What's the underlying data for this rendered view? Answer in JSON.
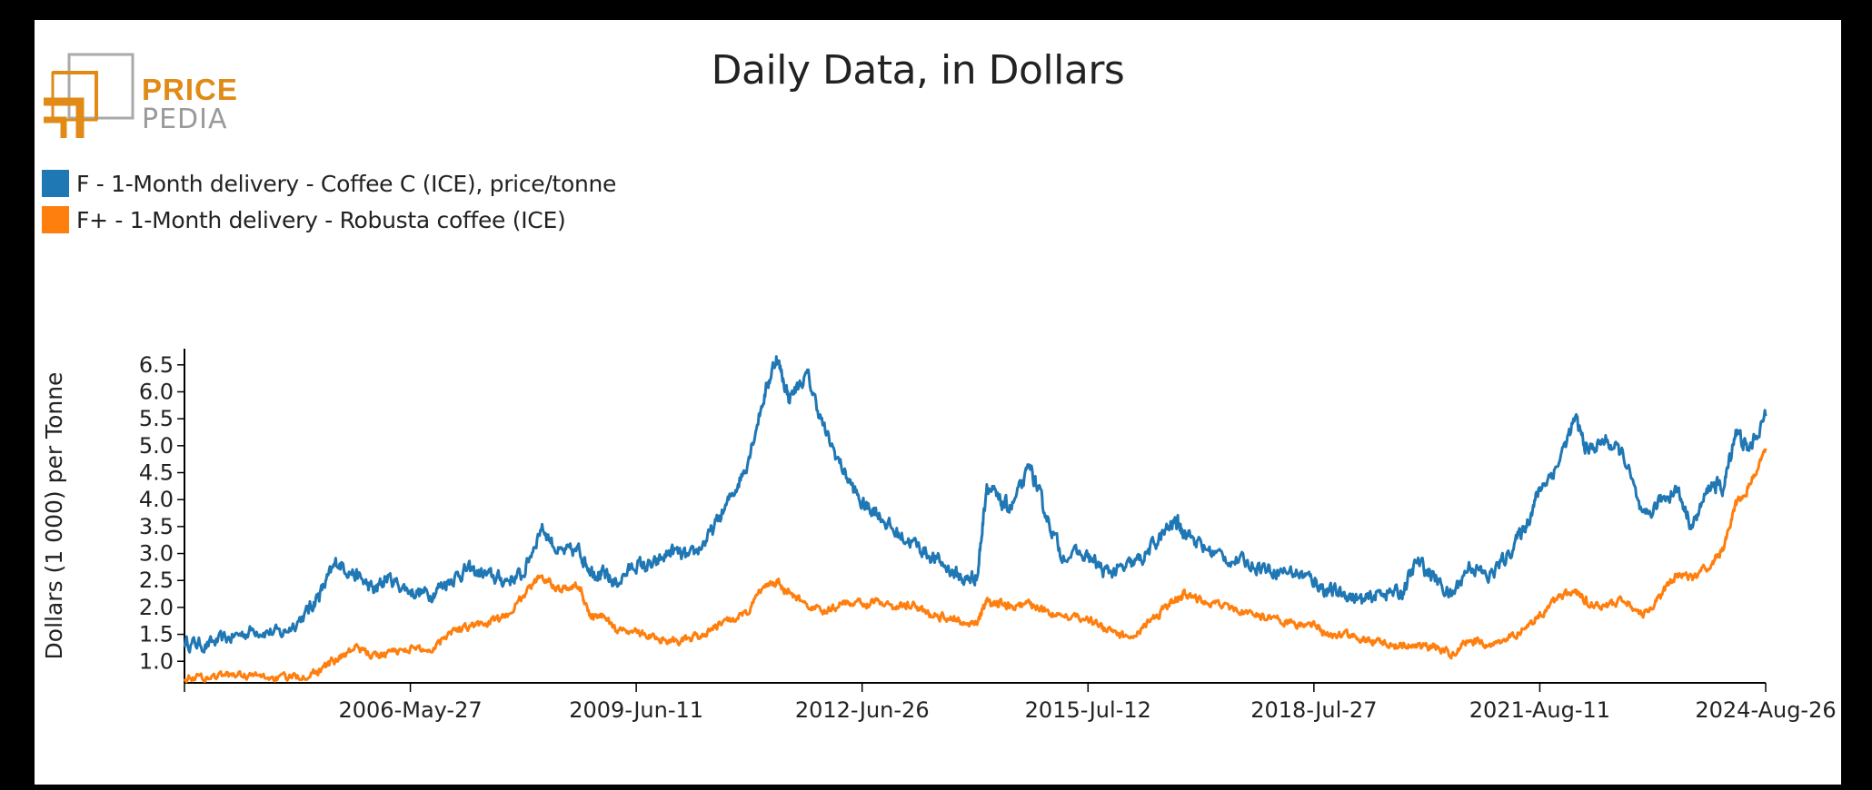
{
  "brand": {
    "word1": "PRICE",
    "word2": "PEDIA"
  },
  "chart_data": {
    "type": "line",
    "title": "Daily Data, in Dollars",
    "ylabel": "Dollars (1 000) per Tonne",
    "xlabel": "",
    "ylim": [
      0.6,
      6.8
    ],
    "xlim": [
      "2003-05-12",
      "2024-08-26"
    ],
    "yticks": [
      1.0,
      1.5,
      2.0,
      2.5,
      3.0,
      3.5,
      4.0,
      4.5,
      5.0,
      5.5,
      6.0,
      6.5
    ],
    "xticks": [
      "2006-May-27",
      "2009-Jun-11",
      "2012-Jun-26",
      "2015-Jul-12",
      "2018-Jul-27",
      "2021-Aug-11",
      "2024-Aug-26"
    ],
    "grid": false,
    "legend_position": "top-left",
    "series": [
      {
        "name": "F - 1-Month delivery - Coffee C (ICE), price/tonne",
        "color": "#1f77b4",
        "points": [
          [
            "2003-05-12",
            1.35
          ],
          [
            "2003-09-01",
            1.3
          ],
          [
            "2004-01-01",
            1.45
          ],
          [
            "2004-05-01",
            1.6
          ],
          [
            "2004-09-01",
            1.5
          ],
          [
            "2005-01-01",
            1.9
          ],
          [
            "2005-03-15",
            2.3
          ],
          [
            "2005-06-01",
            2.85
          ],
          [
            "2005-09-01",
            2.6
          ],
          [
            "2005-12-01",
            2.3
          ],
          [
            "2006-02-01",
            2.55
          ],
          [
            "2006-05-27",
            2.3
          ],
          [
            "2006-09-01",
            2.25
          ],
          [
            "2006-12-01",
            2.5
          ],
          [
            "2007-03-01",
            2.7
          ],
          [
            "2007-06-01",
            2.6
          ],
          [
            "2007-09-01",
            2.5
          ],
          [
            "2007-12-01",
            2.6
          ],
          [
            "2008-03-01",
            3.5
          ],
          [
            "2008-06-01",
            3.0
          ],
          [
            "2008-09-01",
            3.05
          ],
          [
            "2008-11-01",
            2.7
          ],
          [
            "2009-01-01",
            2.6
          ],
          [
            "2009-03-01",
            2.45
          ],
          [
            "2009-06-11",
            2.8
          ],
          [
            "2009-09-01",
            2.75
          ],
          [
            "2009-12-01",
            3.05
          ],
          [
            "2010-03-01",
            2.9
          ],
          [
            "2010-06-01",
            3.3
          ],
          [
            "2010-09-01",
            3.9
          ],
          [
            "2010-12-01",
            4.6
          ],
          [
            "2011-03-01",
            5.9
          ],
          [
            "2011-05-01",
            6.65
          ],
          [
            "2011-07-01",
            5.9
          ],
          [
            "2011-10-01",
            6.3
          ],
          [
            "2012-01-01",
            5.2
          ],
          [
            "2012-04-01",
            4.5
          ],
          [
            "2012-06-26",
            3.9
          ],
          [
            "2012-09-01",
            3.8
          ],
          [
            "2012-12-01",
            3.4
          ],
          [
            "2013-03-01",
            3.2
          ],
          [
            "2013-06-01",
            2.95
          ],
          [
            "2013-09-01",
            2.7
          ],
          [
            "2013-11-15",
            2.5
          ],
          [
            "2014-01-15",
            2.6
          ],
          [
            "2014-03-01",
            4.3
          ],
          [
            "2014-05-01",
            3.95
          ],
          [
            "2014-07-01",
            3.85
          ],
          [
            "2014-10-01",
            4.6
          ],
          [
            "2014-12-01",
            3.9
          ],
          [
            "2015-03-01",
            3.0
          ],
          [
            "2015-07-12",
            2.95
          ],
          [
            "2015-10-01",
            2.65
          ],
          [
            "2016-01-01",
            2.7
          ],
          [
            "2016-04-01",
            2.9
          ],
          [
            "2016-07-01",
            3.3
          ],
          [
            "2016-09-15",
            3.6
          ],
          [
            "2016-11-01",
            3.4
          ],
          [
            "2017-02-01",
            3.1
          ],
          [
            "2017-06-01",
            2.9
          ],
          [
            "2017-10-01",
            2.8
          ],
          [
            "2018-01-01",
            2.7
          ],
          [
            "2018-05-01",
            2.65
          ],
          [
            "2018-07-27",
            2.5
          ],
          [
            "2018-10-01",
            2.3
          ],
          [
            "2019-01-01",
            2.25
          ],
          [
            "2019-04-01",
            2.1
          ],
          [
            "2019-07-01",
            2.3
          ],
          [
            "2019-10-01",
            2.25
          ],
          [
            "2019-12-15",
            2.85
          ],
          [
            "2020-03-01",
            2.6
          ],
          [
            "2020-06-01",
            2.2
          ],
          [
            "2020-09-01",
            2.8
          ],
          [
            "2020-12-01",
            2.55
          ],
          [
            "2021-03-01",
            2.95
          ],
          [
            "2021-06-01",
            3.5
          ],
          [
            "2021-08-11",
            4.2
          ],
          [
            "2021-11-01",
            4.6
          ],
          [
            "2022-02-01",
            5.5
          ],
          [
            "2022-04-01",
            4.9
          ],
          [
            "2022-07-01",
            5.1
          ],
          [
            "2022-10-01",
            4.8
          ],
          [
            "2023-01-01",
            3.6
          ],
          [
            "2023-04-01",
            4.0
          ],
          [
            "2023-06-15",
            4.2
          ],
          [
            "2023-09-01",
            3.5
          ],
          [
            "2023-12-01",
            4.3
          ],
          [
            "2024-02-01",
            4.2
          ],
          [
            "2024-04-01",
            5.3
          ],
          [
            "2024-06-01",
            4.9
          ],
          [
            "2024-08-26",
            5.55
          ]
        ]
      },
      {
        "name": "F+ - 1-Month delivery - Robusta coffee (ICE)",
        "color": "#ff7f0e",
        "points": [
          [
            "2003-05-12",
            0.72
          ],
          [
            "2003-09-01",
            0.7
          ],
          [
            "2004-01-01",
            0.76
          ],
          [
            "2004-05-01",
            0.72
          ],
          [
            "2004-09-01",
            0.68
          ],
          [
            "2005-01-01",
            0.75
          ],
          [
            "2005-03-15",
            0.85
          ],
          [
            "2005-06-01",
            1.05
          ],
          [
            "2005-09-01",
            1.25
          ],
          [
            "2005-12-01",
            1.1
          ],
          [
            "2006-02-01",
            1.15
          ],
          [
            "2006-05-27",
            1.25
          ],
          [
            "2006-09-01",
            1.2
          ],
          [
            "2006-12-01",
            1.55
          ],
          [
            "2007-03-01",
            1.65
          ],
          [
            "2007-06-01",
            1.7
          ],
          [
            "2007-09-01",
            1.8
          ],
          [
            "2007-12-01",
            2.2
          ],
          [
            "2008-03-01",
            2.6
          ],
          [
            "2008-06-01",
            2.35
          ],
          [
            "2008-09-01",
            2.4
          ],
          [
            "2008-11-01",
            1.8
          ],
          [
            "2009-01-01",
            1.85
          ],
          [
            "2009-03-01",
            1.6
          ],
          [
            "2009-06-11",
            1.55
          ],
          [
            "2009-09-01",
            1.45
          ],
          [
            "2009-12-01",
            1.4
          ],
          [
            "2010-03-01",
            1.38
          ],
          [
            "2010-06-01",
            1.55
          ],
          [
            "2010-09-01",
            1.75
          ],
          [
            "2010-12-01",
            1.85
          ],
          [
            "2011-03-01",
            2.4
          ],
          [
            "2011-05-01",
            2.5
          ],
          [
            "2011-07-01",
            2.25
          ],
          [
            "2011-10-01",
            2.05
          ],
          [
            "2012-01-01",
            1.9
          ],
          [
            "2012-04-01",
            2.1
          ],
          [
            "2012-06-26",
            2.05
          ],
          [
            "2012-09-01",
            2.15
          ],
          [
            "2012-12-01",
            2.0
          ],
          [
            "2013-03-01",
            2.05
          ],
          [
            "2013-06-01",
            1.85
          ],
          [
            "2013-09-01",
            1.8
          ],
          [
            "2013-11-15",
            1.7
          ],
          [
            "2014-01-15",
            1.75
          ],
          [
            "2014-03-01",
            2.1
          ],
          [
            "2014-05-01",
            2.05
          ],
          [
            "2014-07-01",
            2.0
          ],
          [
            "2014-10-01",
            2.05
          ],
          [
            "2014-12-01",
            1.95
          ],
          [
            "2015-03-01",
            1.85
          ],
          [
            "2015-07-12",
            1.8
          ],
          [
            "2015-10-01",
            1.6
          ],
          [
            "2016-01-01",
            1.45
          ],
          [
            "2016-04-01",
            1.6
          ],
          [
            "2016-07-01",
            1.9
          ],
          [
            "2016-09-15",
            2.15
          ],
          [
            "2016-11-01",
            2.25
          ],
          [
            "2017-02-01",
            2.1
          ],
          [
            "2017-06-01",
            2.0
          ],
          [
            "2017-10-01",
            1.85
          ],
          [
            "2018-01-01",
            1.8
          ],
          [
            "2018-05-01",
            1.7
          ],
          [
            "2018-07-27",
            1.65
          ],
          [
            "2018-10-01",
            1.5
          ],
          [
            "2019-01-01",
            1.5
          ],
          [
            "2019-04-01",
            1.4
          ],
          [
            "2019-07-01",
            1.35
          ],
          [
            "2019-10-01",
            1.3
          ],
          [
            "2019-12-15",
            1.3
          ],
          [
            "2020-03-01",
            1.25
          ],
          [
            "2020-06-01",
            1.15
          ],
          [
            "2020-09-01",
            1.4
          ],
          [
            "2020-12-01",
            1.3
          ],
          [
            "2021-03-01",
            1.4
          ],
          [
            "2021-06-01",
            1.6
          ],
          [
            "2021-08-11",
            1.85
          ],
          [
            "2021-11-01",
            2.15
          ],
          [
            "2022-02-01",
            2.3
          ],
          [
            "2022-04-01",
            2.1
          ],
          [
            "2022-07-01",
            2.0
          ],
          [
            "2022-10-01",
            2.15
          ],
          [
            "2023-01-01",
            1.85
          ],
          [
            "2023-04-01",
            2.25
          ],
          [
            "2023-06-15",
            2.6
          ],
          [
            "2023-09-01",
            2.55
          ],
          [
            "2023-12-01",
            2.8
          ],
          [
            "2024-02-01",
            3.1
          ],
          [
            "2024-04-01",
            3.9
          ],
          [
            "2024-06-01",
            4.2
          ],
          [
            "2024-08-26",
            4.95
          ]
        ]
      }
    ]
  }
}
